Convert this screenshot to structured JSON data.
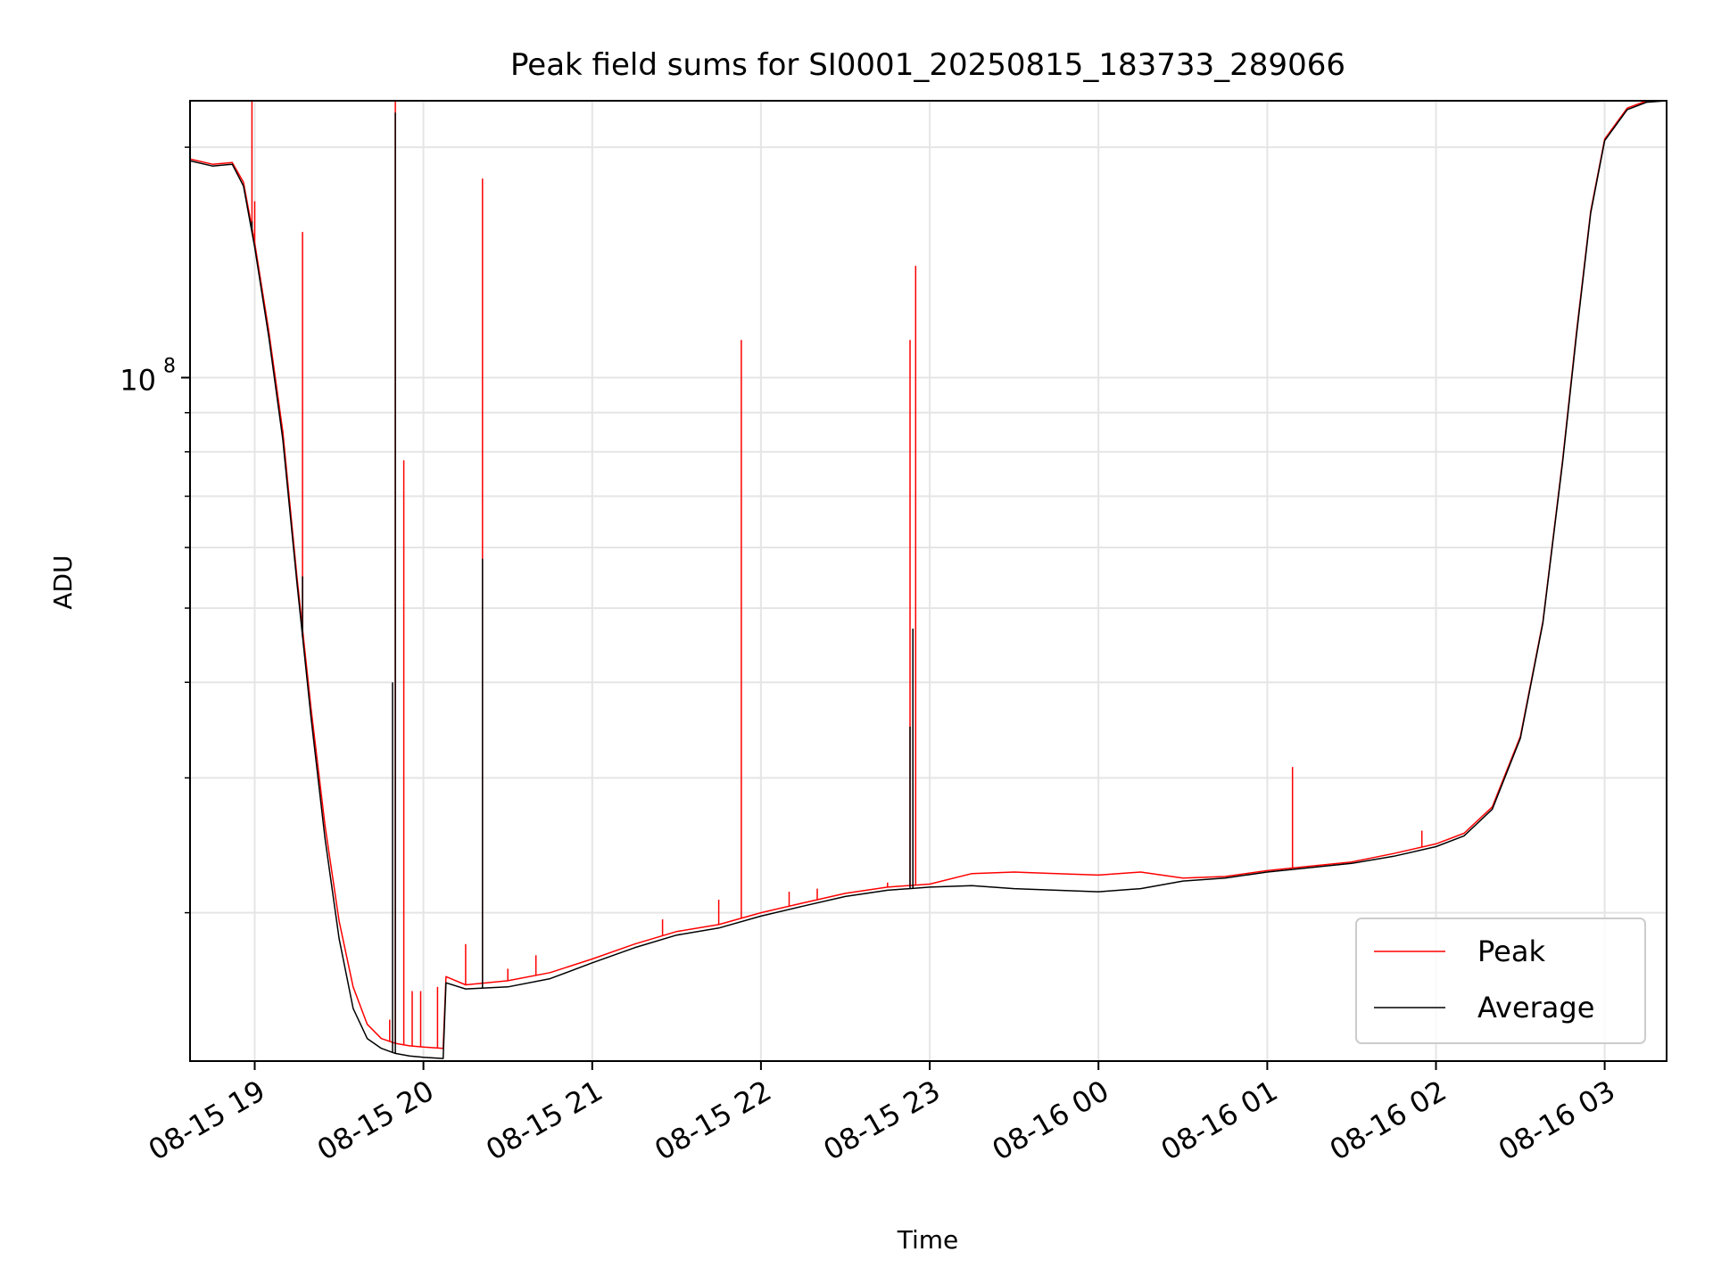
{
  "chart_data": {
    "type": "line",
    "title": "Peak field sums for SI0001_20250815_183733_289066",
    "xlabel": "Time",
    "ylabel": "ADU",
    "y_scale": "log",
    "grid": true,
    "legend_position": "lower-right",
    "xlim": [
      "2025-08-15 18:37",
      "2025-08-16 03:22"
    ],
    "ylim": [
      12800000,
      230000000
    ],
    "x_ticks": [
      {
        "t": "2025-08-15 19:00",
        "label": "08-15 19"
      },
      {
        "t": "2025-08-15 20:00",
        "label": "08-15 20"
      },
      {
        "t": "2025-08-15 21:00",
        "label": "08-15 21"
      },
      {
        "t": "2025-08-15 22:00",
        "label": "08-15 22"
      },
      {
        "t": "2025-08-15 23:00",
        "label": "08-15 23"
      },
      {
        "t": "2025-08-16 00:00",
        "label": "08-16 00"
      },
      {
        "t": "2025-08-16 01:00",
        "label": "08-16 01"
      },
      {
        "t": "2025-08-16 02:00",
        "label": "08-16 02"
      },
      {
        "t": "2025-08-16 03:00",
        "label": "08-16 03"
      }
    ],
    "y_major_ticks": [
      {
        "value": 100000000,
        "label_base": "10",
        "label_exp": "8"
      }
    ],
    "y_minor_ticks": [
      20000000,
      30000000,
      40000000,
      50000000,
      60000000,
      70000000,
      80000000,
      90000000,
      200000000
    ],
    "series": [
      {
        "name": "Peak",
        "color": "#ff0000",
        "points": [
          [
            "2025-08-15 18:37",
            193000000
          ],
          [
            "2025-08-15 18:45",
            190000000
          ],
          [
            "2025-08-15 18:52",
            191000000
          ],
          [
            "2025-08-15 18:56",
            180000000
          ],
          [
            "2025-08-15 19:00",
            150000000
          ],
          [
            "2025-08-15 19:05",
            115000000
          ],
          [
            "2025-08-15 19:10",
            85000000
          ],
          [
            "2025-08-15 19:15",
            55000000
          ],
          [
            "2025-08-15 19:20",
            37000000
          ],
          [
            "2025-08-15 19:25",
            26000000
          ],
          [
            "2025-08-15 19:30",
            19500000
          ],
          [
            "2025-08-15 19:35",
            16000000
          ],
          [
            "2025-08-15 19:40",
            14300000
          ],
          [
            "2025-08-15 19:45",
            13700000
          ],
          [
            "2025-08-15 19:50",
            13500000
          ],
          [
            "2025-08-15 19:55",
            13400000
          ],
          [
            "2025-08-15 20:00",
            13350000
          ],
          [
            "2025-08-15 20:07",
            13300000
          ],
          [
            "2025-08-15 20:08",
            16500000
          ],
          [
            "2025-08-15 20:15",
            16100000
          ],
          [
            "2025-08-15 20:30",
            16300000
          ],
          [
            "2025-08-15 20:45",
            16700000
          ],
          [
            "2025-08-15 21:00",
            17400000
          ],
          [
            "2025-08-15 21:15",
            18200000
          ],
          [
            "2025-08-15 21:30",
            18900000
          ],
          [
            "2025-08-15 21:45",
            19300000
          ],
          [
            "2025-08-15 22:00",
            20000000
          ],
          [
            "2025-08-15 22:15",
            20600000
          ],
          [
            "2025-08-15 22:30",
            21200000
          ],
          [
            "2025-08-15 22:45",
            21600000
          ],
          [
            "2025-08-15 23:00",
            21800000
          ],
          [
            "2025-08-15 23:15",
            22500000
          ],
          [
            "2025-08-15 23:30",
            22600000
          ],
          [
            "2025-08-15 23:45",
            22500000
          ],
          [
            "2025-08-16 00:00",
            22400000
          ],
          [
            "2025-08-16 00:15",
            22600000
          ],
          [
            "2025-08-16 00:30",
            22200000
          ],
          [
            "2025-08-16 00:45",
            22300000
          ],
          [
            "2025-08-16 01:00",
            22700000
          ],
          [
            "2025-08-16 01:15",
            23000000
          ],
          [
            "2025-08-16 01:30",
            23300000
          ],
          [
            "2025-08-16 01:45",
            23900000
          ],
          [
            "2025-08-16 02:00",
            24600000
          ],
          [
            "2025-08-16 02:10",
            25400000
          ],
          [
            "2025-08-16 02:20",
            27500000
          ],
          [
            "2025-08-16 02:30",
            34000000
          ],
          [
            "2025-08-16 02:38",
            48000000
          ],
          [
            "2025-08-16 02:45",
            78000000
          ],
          [
            "2025-08-16 02:50",
            115000000
          ],
          [
            "2025-08-16 02:55",
            165000000
          ],
          [
            "2025-08-16 03:00",
            205000000
          ],
          [
            "2025-08-16 03:08",
            225000000
          ],
          [
            "2025-08-16 03:15",
            230000000
          ],
          [
            "2025-08-16 03:22",
            231000000
          ]
        ],
        "spikes": [
          [
            "2025-08-15 18:59",
            230000000
          ],
          [
            "2025-08-15 19:00",
            170000000
          ],
          [
            "2025-08-15 19:17",
            155000000
          ],
          [
            "2025-08-15 19:48",
            14500000
          ],
          [
            "2025-08-15 19:50",
            230000000
          ],
          [
            "2025-08-15 19:53",
            78000000
          ],
          [
            "2025-08-15 19:56",
            15800000
          ],
          [
            "2025-08-15 19:59",
            15800000
          ],
          [
            "2025-08-15 20:05",
            16000000
          ],
          [
            "2025-08-15 20:15",
            18200000
          ],
          [
            "2025-08-15 20:21",
            182000000
          ],
          [
            "2025-08-15 20:30",
            16900000
          ],
          [
            "2025-08-15 20:40",
            17600000
          ],
          [
            "2025-08-15 21:25",
            19600000
          ],
          [
            "2025-08-15 21:45",
            20800000
          ],
          [
            "2025-08-15 21:53",
            112000000
          ],
          [
            "2025-08-15 22:10",
            21300000
          ],
          [
            "2025-08-15 22:20",
            21500000
          ],
          [
            "2025-08-15 22:45",
            21900000
          ],
          [
            "2025-08-15 22:53",
            112000000
          ],
          [
            "2025-08-15 22:55",
            140000000
          ],
          [
            "2025-08-16 01:09",
            31000000
          ],
          [
            "2025-08-16 01:55",
            25600000
          ]
        ]
      },
      {
        "name": "Average",
        "color": "#000000",
        "points": [
          [
            "2025-08-15 18:37",
            192000000
          ],
          [
            "2025-08-15 18:45",
            189000000
          ],
          [
            "2025-08-15 18:52",
            190000000
          ],
          [
            "2025-08-15 18:56",
            178000000
          ],
          [
            "2025-08-15 19:00",
            148000000
          ],
          [
            "2025-08-15 19:05",
            113000000
          ],
          [
            "2025-08-15 19:10",
            83000000
          ],
          [
            "2025-08-15 19:15",
            54000000
          ],
          [
            "2025-08-15 19:20",
            36000000
          ],
          [
            "2025-08-15 19:25",
            25000000
          ],
          [
            "2025-08-15 19:30",
            18500000
          ],
          [
            "2025-08-15 19:35",
            15000000
          ],
          [
            "2025-08-15 19:40",
            13700000
          ],
          [
            "2025-08-15 19:45",
            13300000
          ],
          [
            "2025-08-15 19:50",
            13100000
          ],
          [
            "2025-08-15 19:55",
            13000000
          ],
          [
            "2025-08-15 20:00",
            12950000
          ],
          [
            "2025-08-15 20:07",
            12900000
          ],
          [
            "2025-08-15 20:08",
            16200000
          ],
          [
            "2025-08-15 20:15",
            15900000
          ],
          [
            "2025-08-15 20:30",
            16000000
          ],
          [
            "2025-08-15 20:45",
            16400000
          ],
          [
            "2025-08-15 21:00",
            17200000
          ],
          [
            "2025-08-15 21:15",
            18000000
          ],
          [
            "2025-08-15 21:30",
            18700000
          ],
          [
            "2025-08-15 21:45",
            19100000
          ],
          [
            "2025-08-15 22:00",
            19800000
          ],
          [
            "2025-08-15 22:15",
            20400000
          ],
          [
            "2025-08-15 22:30",
            21000000
          ],
          [
            "2025-08-15 22:45",
            21400000
          ],
          [
            "2025-08-15 23:00",
            21600000
          ],
          [
            "2025-08-15 23:15",
            21700000
          ],
          [
            "2025-08-15 23:30",
            21500000
          ],
          [
            "2025-08-15 23:45",
            21400000
          ],
          [
            "2025-08-16 00:00",
            21300000
          ],
          [
            "2025-08-16 00:15",
            21500000
          ],
          [
            "2025-08-16 00:30",
            22000000
          ],
          [
            "2025-08-16 00:45",
            22200000
          ],
          [
            "2025-08-16 01:00",
            22600000
          ],
          [
            "2025-08-16 01:15",
            22900000
          ],
          [
            "2025-08-16 01:30",
            23200000
          ],
          [
            "2025-08-16 01:45",
            23700000
          ],
          [
            "2025-08-16 02:00",
            24400000
          ],
          [
            "2025-08-16 02:10",
            25200000
          ],
          [
            "2025-08-16 02:20",
            27300000
          ],
          [
            "2025-08-16 02:30",
            33800000
          ],
          [
            "2025-08-16 02:38",
            47800000
          ],
          [
            "2025-08-16 02:45",
            77500000
          ],
          [
            "2025-08-16 02:50",
            114000000
          ],
          [
            "2025-08-16 02:55",
            164000000
          ],
          [
            "2025-08-16 03:00",
            204000000
          ],
          [
            "2025-08-16 03:08",
            224000000
          ],
          [
            "2025-08-16 03:15",
            229000000
          ],
          [
            "2025-08-16 03:22",
            230000000
          ]
        ],
        "spikes": [
          [
            "2025-08-15 18:59",
            160000000
          ],
          [
            "2025-08-15 19:17",
            55000000
          ],
          [
            "2025-08-15 19:49",
            40000000
          ],
          [
            "2025-08-15 19:50",
            222000000
          ],
          [
            "2025-08-15 20:21",
            58000000
          ],
          [
            "2025-08-15 22:53",
            35000000
          ],
          [
            "2025-08-15 22:54",
            47000000
          ]
        ]
      }
    ]
  }
}
